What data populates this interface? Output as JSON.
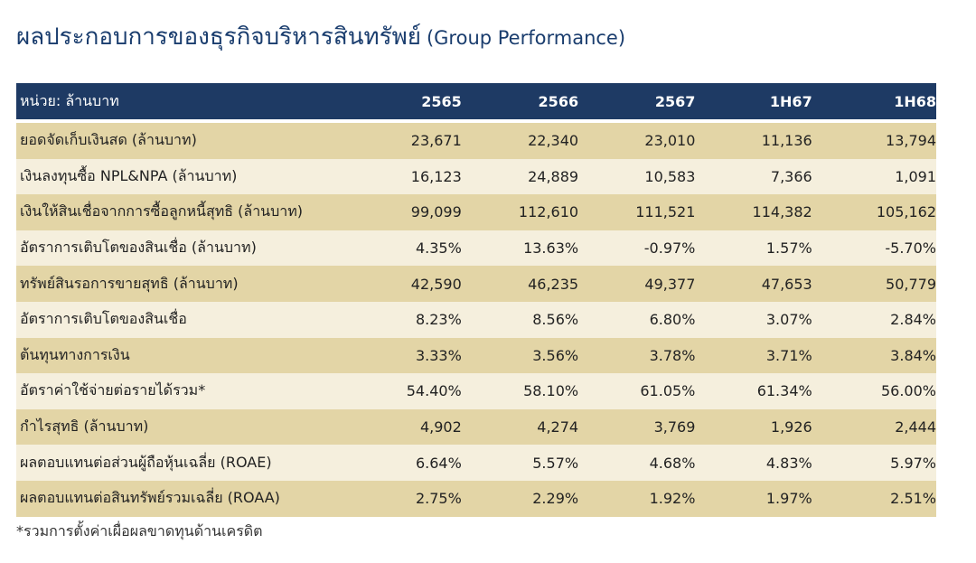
{
  "title": {
    "thai": "ผลประกอบการของธุรกิจบริหารสินทรัพย์",
    "english": "(Group Performance)"
  },
  "table": {
    "unit_label": "หน่วย: ล้านบาท",
    "columns": [
      "2565",
      "2566",
      "2567",
      "1H67",
      "1H68"
    ],
    "rows": [
      {
        "label": "ยอดจัดเก็บเงินสด (ล้านบาท)",
        "values": [
          "23,671",
          "22,340",
          "23,010",
          "11,136",
          "13,794"
        ]
      },
      {
        "label": "เงินลงทุนซื้อ NPL&NPA (ล้านบาท)",
        "values": [
          "16,123",
          "24,889",
          "10,583",
          "7,366",
          "1,091"
        ]
      },
      {
        "label": "เงินให้สินเชื่อจากการซื้อลูกหนี้สุทธิ (ล้านบาท)",
        "values": [
          "99,099",
          "112,610",
          "111,521",
          "114,382",
          "105,162"
        ]
      },
      {
        "label": "อัตราการเติบโตของสินเชื่อ (ล้านบาท)",
        "values": [
          "4.35%",
          "13.63%",
          "-0.97%",
          "1.57%",
          "-5.70%"
        ]
      },
      {
        "label": "ทรัพย์สินรอการขายสุทธิ (ล้านบาท)",
        "values": [
          "42,590",
          "46,235",
          "49,377",
          "47,653",
          "50,779"
        ]
      },
      {
        "label": "อัตราการเติบโตของสินเชื่อ",
        "values": [
          "8.23%",
          "8.56%",
          "6.80%",
          "3.07%",
          "2.84%"
        ]
      },
      {
        "label": "ต้นทุนทางการเงิน",
        "values": [
          "3.33%",
          "3.56%",
          "3.78%",
          "3.71%",
          "3.84%"
        ]
      },
      {
        "label": "อัตราค่าใช้จ่ายต่อรายได้รวม*",
        "values": [
          "54.40%",
          "58.10%",
          "61.05%",
          "61.34%",
          "56.00%"
        ]
      },
      {
        "label": "กำไรสุทธิ (ล้านบาท)",
        "values": [
          "4,902",
          "4,274",
          "3,769",
          "1,926",
          "2,444"
        ]
      },
      {
        "label": "ผลตอบแทนต่อส่วนผู้ถือหุ้นเฉลี่ย (ROAE)",
        "values": [
          "6.64%",
          "5.57%",
          "4.68%",
          "4.83%",
          "5.97%"
        ]
      },
      {
        "label": "ผลตอบแทนต่อสินทรัพย์รวมเฉลี่ย (ROAA)",
        "values": [
          "2.75%",
          "2.29%",
          "1.92%",
          "1.97%",
          "2.51%"
        ]
      }
    ]
  },
  "footnote": "*รวมการตั้งค่าเผื่อผลขาดทุนด้านเครดิต",
  "colors": {
    "title": "#1a3d6e",
    "header_bg": "#1e3a64",
    "row_dark": "#e3d5a6",
    "row_light": "#f5efdd"
  }
}
